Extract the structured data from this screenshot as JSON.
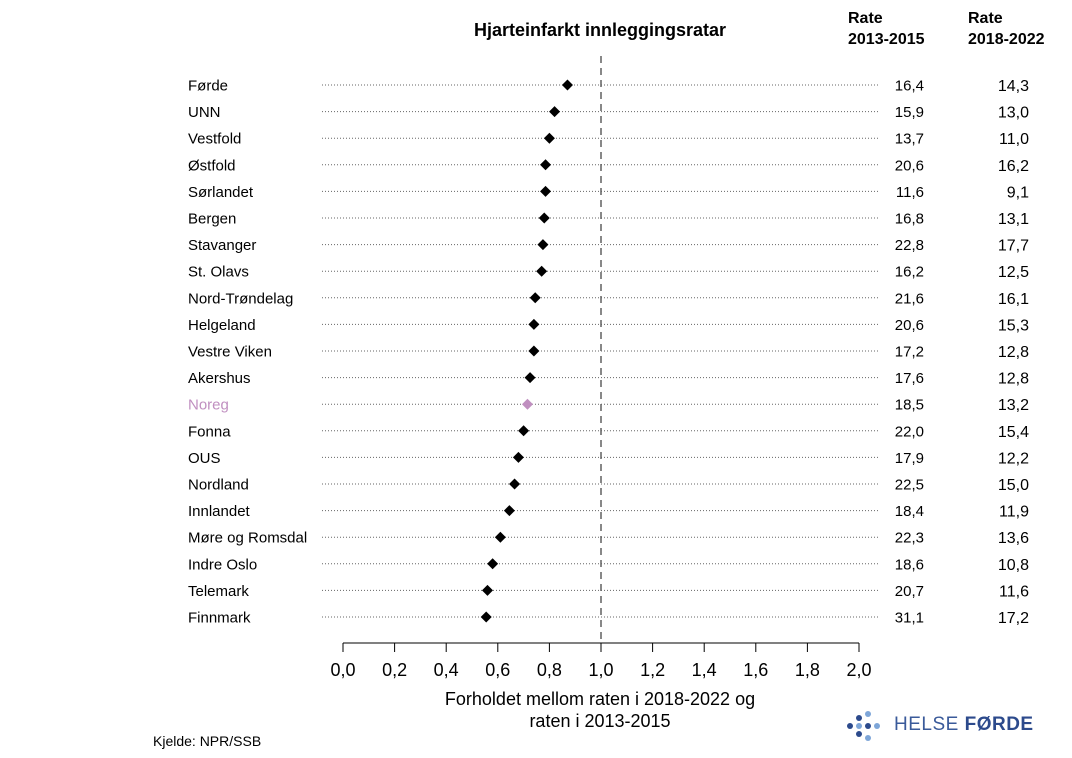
{
  "chart_data": {
    "type": "scatter",
    "title": "Hjarteinfarkt innleggingsratar",
    "xlabel_lines": [
      "Forholdet mellom raten i 2018-2022 og",
      "raten i 2013-2015"
    ],
    "xlim": [
      0,
      2
    ],
    "xticks": [
      "0,0",
      "0,2",
      "0,4",
      "0,6",
      "0,8",
      "1,0",
      "1,2",
      "1,4",
      "1,6",
      "1,8",
      "2,0"
    ],
    "reference_line": 1.0,
    "grid": "dotted horizontal",
    "col1_header": [
      "Rate",
      "2013-2015"
    ],
    "col2_header": [
      "Rate",
      "2018-2022"
    ],
    "rows": [
      {
        "name": "Førde",
        "ratio": 0.87,
        "rate1": "16,4",
        "rate2": "14,3"
      },
      {
        "name": "UNN",
        "ratio": 0.82,
        "rate1": "15,9",
        "rate2": "13,0"
      },
      {
        "name": "Vestfold",
        "ratio": 0.8,
        "rate1": "13,7",
        "rate2": "11,0"
      },
      {
        "name": "Østfold",
        "ratio": 0.785,
        "rate1": "20,6",
        "rate2": "16,2"
      },
      {
        "name": "Sørlandet",
        "ratio": 0.785,
        "rate1": "11,6",
        "rate2": "9,1"
      },
      {
        "name": "Bergen",
        "ratio": 0.78,
        "rate1": "16,8",
        "rate2": "13,1"
      },
      {
        "name": "Stavanger",
        "ratio": 0.775,
        "rate1": "22,8",
        "rate2": "17,7"
      },
      {
        "name": "St. Olavs",
        "ratio": 0.77,
        "rate1": "16,2",
        "rate2": "12,5"
      },
      {
        "name": "Nord-Trøndelag",
        "ratio": 0.745,
        "rate1": "21,6",
        "rate2": "16,1"
      },
      {
        "name": "Helgeland",
        "ratio": 0.74,
        "rate1": "20,6",
        "rate2": "15,3"
      },
      {
        "name": "Vestre Viken",
        "ratio": 0.74,
        "rate1": "17,2",
        "rate2": "12,8"
      },
      {
        "name": "Akershus",
        "ratio": 0.725,
        "rate1": "17,6",
        "rate2": "12,8"
      },
      {
        "name": "Noreg",
        "ratio": 0.715,
        "rate1": "18,5",
        "rate2": "13,2",
        "highlight": true
      },
      {
        "name": "Fonna",
        "ratio": 0.7,
        "rate1": "22,0",
        "rate2": "15,4"
      },
      {
        "name": "OUS",
        "ratio": 0.68,
        "rate1": "17,9",
        "rate2": "12,2"
      },
      {
        "name": "Nordland",
        "ratio": 0.665,
        "rate1": "22,5",
        "rate2": "15,0"
      },
      {
        "name": "Innlandet",
        "ratio": 0.645,
        "rate1": "18,4",
        "rate2": "11,9"
      },
      {
        "name": "Møre og Romsdal",
        "ratio": 0.61,
        "rate1": "22,3",
        "rate2": "13,6"
      },
      {
        "name": "Indre Oslo",
        "ratio": 0.58,
        "rate1": "18,6",
        "rate2": "10,8"
      },
      {
        "name": "Telemark",
        "ratio": 0.56,
        "rate1": "20,7",
        "rate2": "11,6"
      },
      {
        "name": "Finnmark",
        "ratio": 0.555,
        "rate1": "31,1",
        "rate2": "17,2"
      }
    ],
    "colors": {
      "marker": "#000000",
      "highlight": "#c08fc0",
      "refline": "#888888",
      "grid": "#666666"
    }
  },
  "source": "Kjelde: NPR/SSB",
  "logo": {
    "part1": "HELSE",
    "part2": "FØRDE",
    "colors": {
      "text": "#3a5a9a",
      "dot_dark": "#2c4a8c",
      "dot_light": "#7ea6d8"
    }
  }
}
